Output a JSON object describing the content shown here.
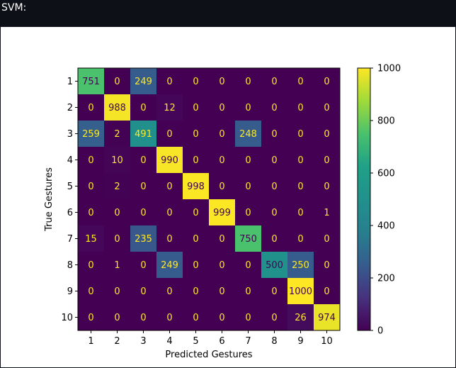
{
  "header": {
    "title": "SVM:"
  },
  "chart_data": {
    "type": "heatmap",
    "title": "",
    "xlabel": "Predicted Gestures",
    "ylabel": "True Gestures",
    "x_categories": [
      "1",
      "2",
      "3",
      "4",
      "5",
      "6",
      "7",
      "8",
      "9",
      "10"
    ],
    "y_categories": [
      "1",
      "2",
      "3",
      "4",
      "5",
      "6",
      "7",
      "8",
      "9",
      "10"
    ],
    "values": [
      [
        751,
        0,
        249,
        0,
        0,
        0,
        0,
        0,
        0,
        0
      ],
      [
        0,
        988,
        0,
        12,
        0,
        0,
        0,
        0,
        0,
        0
      ],
      [
        259,
        2,
        491,
        0,
        0,
        0,
        248,
        0,
        0,
        0
      ],
      [
        0,
        10,
        0,
        990,
        0,
        0,
        0,
        0,
        0,
        0
      ],
      [
        0,
        2,
        0,
        0,
        998,
        0,
        0,
        0,
        0,
        0
      ],
      [
        0,
        0,
        0,
        0,
        0,
        999,
        0,
        0,
        0,
        1
      ],
      [
        15,
        0,
        235,
        0,
        0,
        0,
        750,
        0,
        0,
        0
      ],
      [
        0,
        1,
        0,
        249,
        0,
        0,
        0,
        500,
        250,
        0
      ],
      [
        0,
        0,
        0,
        0,
        0,
        0,
        0,
        0,
        1000,
        0
      ],
      [
        0,
        0,
        0,
        0,
        0,
        0,
        0,
        0,
        26,
        974
      ]
    ],
    "colormap": "viridis",
    "colorbar": {
      "range": [
        0,
        1000
      ],
      "ticks": [
        0,
        200,
        400,
        600,
        800,
        1000
      ]
    },
    "grid": false,
    "colors": {
      "low_text": "#fde725",
      "high_text": "#440154"
    }
  }
}
